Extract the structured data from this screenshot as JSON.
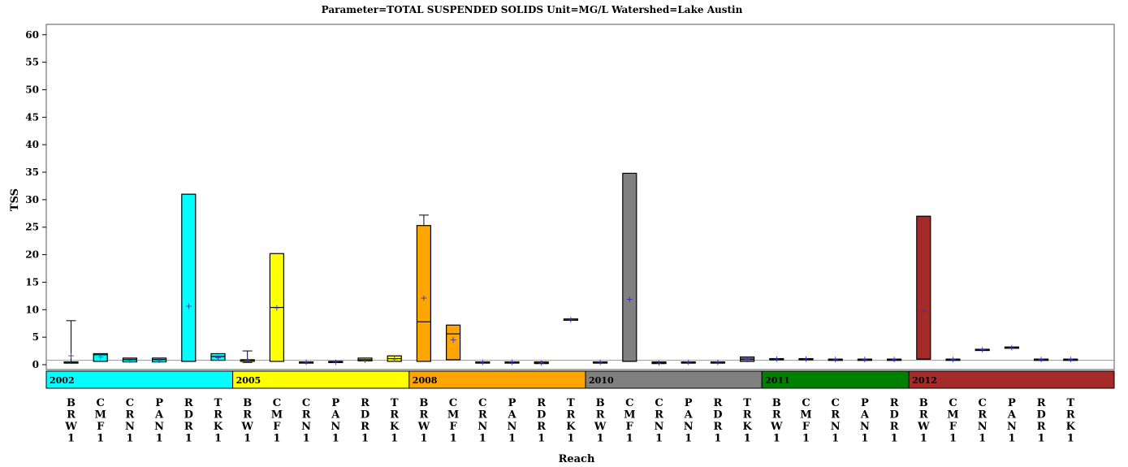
{
  "chart_data": {
    "type": "box",
    "title": "Parameter=TOTAL SUSPENDED SOLIDS Unit=MG/L Watershed=Lake Austin",
    "xlabel": "Reach",
    "ylabel": "TSS",
    "ylim": [
      0,
      61
    ],
    "yticks": [
      "0",
      "5",
      "10",
      "15",
      "20",
      "25",
      "30",
      "35",
      "40",
      "45",
      "50",
      "55",
      "60"
    ],
    "reference_line": 0.8,
    "groups": [
      {
        "label": "2002",
        "color": "#00ffff",
        "categories": [
          "BRW1",
          "CMF1",
          "CRN1",
          "PAN1",
          "RDR1",
          "TRK1"
        ]
      },
      {
        "label": "2005",
        "color": "#ffff00",
        "categories": [
          "BRW1",
          "CMF1",
          "CRN1",
          "PAN1",
          "RDR1",
          "TRK1"
        ]
      },
      {
        "label": "2008",
        "color": "#ffa500",
        "categories": [
          "BRW1",
          "CMF1",
          "CRN1",
          "PAN1",
          "RDR1",
          "TRK1"
        ]
      },
      {
        "label": "2010",
        "color": "#808080",
        "categories": [
          "BRW1",
          "CMF1",
          "CRN1",
          "PAN1",
          "RDR1",
          "TRK1"
        ]
      },
      {
        "label": "2011",
        "color": "#008000",
        "categories": [
          "BRW1",
          "CMF1",
          "CRN1",
          "PAN1",
          "RDR1"
        ]
      },
      {
        "label": "2012",
        "color": "#a52a2a",
        "categories": [
          "BRW1",
          "CMF1",
          "CRN1",
          "PAN1",
          "RDR1",
          "TRK1"
        ]
      }
    ],
    "boxes": [
      {
        "group": "2002",
        "reach": "BRW1",
        "q1": 0.5,
        "median": 0.5,
        "q3": 0.5,
        "min": 0.3,
        "max": 8.0,
        "mean": 1.7
      },
      {
        "group": "2002",
        "reach": "CMF1",
        "q1": 0.6,
        "median": 1.8,
        "q3": 2.0,
        "min": 0.6,
        "max": 2.0,
        "mean": 1.5
      },
      {
        "group": "2002",
        "reach": "CRN1",
        "q1": 0.5,
        "median": 0.9,
        "q3": 1.2,
        "min": 0.5,
        "max": 1.2,
        "mean": 0.9
      },
      {
        "group": "2002",
        "reach": "PAN1",
        "q1": 0.5,
        "median": 0.9,
        "q3": 1.2,
        "min": 0.5,
        "max": 1.2,
        "mean": 0.9
      },
      {
        "group": "2002",
        "reach": "RDR1",
        "q1": 0.6,
        "median": 0.6,
        "q3": 31.0,
        "min": 0.6,
        "max": 31.0,
        "mean": 10.7
      },
      {
        "group": "2002",
        "reach": "TRK1",
        "q1": 0.8,
        "median": 1.5,
        "q3": 2.0,
        "min": 0.8,
        "max": 2.0,
        "mean": 1.3
      },
      {
        "group": "2005",
        "reach": "BRW1",
        "q1": 0.6,
        "median": 0.8,
        "q3": 0.9,
        "min": 0.4,
        "max": 2.5,
        "mean": 0.9
      },
      {
        "group": "2005",
        "reach": "CMF1",
        "q1": 0.6,
        "median": 10.4,
        "q3": 20.2,
        "min": 0.6,
        "max": 20.2,
        "mean": 10.4
      },
      {
        "group": "2005",
        "reach": "CRN1",
        "q1": 0.5,
        "median": 0.5,
        "q3": 0.5,
        "min": 0.5,
        "max": 0.5,
        "mean": 0.5
      },
      {
        "group": "2005",
        "reach": "PAN1",
        "q1": 0.5,
        "median": 0.5,
        "q3": 0.6,
        "min": 0.5,
        "max": 0.6,
        "mean": 0.5
      },
      {
        "group": "2005",
        "reach": "RDR1",
        "q1": 0.7,
        "median": 0.9,
        "q3": 1.2,
        "min": 0.7,
        "max": 1.2,
        "mean": 0.9
      },
      {
        "group": "2005",
        "reach": "TRK1",
        "q1": 0.6,
        "median": 1.1,
        "q3": 1.6,
        "min": 0.6,
        "max": 1.6,
        "mean": 1.1
      },
      {
        "group": "2008",
        "reach": "BRW1",
        "q1": 0.6,
        "median": 7.8,
        "q3": 25.3,
        "min": 0.6,
        "max": 27.2,
        "mean": 12.2
      },
      {
        "group": "2008",
        "reach": "CMF1",
        "q1": 0.9,
        "median": 5.6,
        "q3": 7.2,
        "min": 0.9,
        "max": 7.2,
        "mean": 4.6
      },
      {
        "group": "2008",
        "reach": "CRN1",
        "q1": 0.5,
        "median": 0.5,
        "q3": 0.5,
        "min": 0.5,
        "max": 0.5,
        "mean": 0.5
      },
      {
        "group": "2008",
        "reach": "PAN1",
        "q1": 0.5,
        "median": 0.5,
        "q3": 0.5,
        "min": 0.5,
        "max": 0.5,
        "mean": 0.5
      },
      {
        "group": "2008",
        "reach": "RDR1",
        "q1": 0.2,
        "median": 0.3,
        "q3": 0.5,
        "min": 0.2,
        "max": 0.5,
        "mean": 0.35
      },
      {
        "group": "2008",
        "reach": "TRK1",
        "q1": 8.3,
        "median": 8.3,
        "q3": 8.3,
        "min": 8.3,
        "max": 8.3,
        "mean": 8.3
      },
      {
        "group": "2010",
        "reach": "BRW1",
        "q1": 0.5,
        "median": 0.5,
        "q3": 0.5,
        "min": 0.5,
        "max": 0.5,
        "mean": 0.5
      },
      {
        "group": "2010",
        "reach": "CMF1",
        "q1": 0.6,
        "median": 0.6,
        "q3": 34.8,
        "min": 0.6,
        "max": 34.8,
        "mean": 12.0
      },
      {
        "group": "2010",
        "reach": "CRN1",
        "q1": 0.2,
        "median": 0.4,
        "q3": 0.5,
        "min": 0.2,
        "max": 0.5,
        "mean": 0.4
      },
      {
        "group": "2010",
        "reach": "PAN1",
        "q1": 0.5,
        "median": 0.5,
        "q3": 0.5,
        "min": 0.5,
        "max": 0.5,
        "mean": 0.5
      },
      {
        "group": "2010",
        "reach": "RDR1",
        "q1": 0.5,
        "median": 0.5,
        "q3": 0.5,
        "min": 0.5,
        "max": 0.5,
        "mean": 0.5
      },
      {
        "group": "2010",
        "reach": "TRK1",
        "q1": 0.6,
        "median": 1.0,
        "q3": 1.4,
        "min": 0.6,
        "max": 1.4,
        "mean": 1.0
      },
      {
        "group": "2011",
        "reach": "BRW1",
        "q1": 1.1,
        "median": 1.1,
        "q3": 1.1,
        "min": 1.1,
        "max": 1.1,
        "mean": 1.1
      },
      {
        "group": "2011",
        "reach": "CMF1",
        "q1": 1.1,
        "median": 1.1,
        "q3": 1.1,
        "min": 1.1,
        "max": 1.1,
        "mean": 1.1
      },
      {
        "group": "2011",
        "reach": "CRN1",
        "q1": 1.0,
        "median": 1.0,
        "q3": 1.0,
        "min": 1.0,
        "max": 1.0,
        "mean": 1.0
      },
      {
        "group": "2011",
        "reach": "PAN1",
        "q1": 1.0,
        "median": 1.0,
        "q3": 1.0,
        "min": 1.0,
        "max": 1.0,
        "mean": 1.0
      },
      {
        "group": "2011",
        "reach": "RDR1",
        "q1": 1.0,
        "median": 1.0,
        "q3": 1.0,
        "min": 1.0,
        "max": 1.0,
        "mean": 1.0
      },
      {
        "group": "2012",
        "reach": "BRW1",
        "q1": 1.0,
        "median": 1.0,
        "q3": 27.0,
        "min": 1.0,
        "max": 27.0,
        "mean": 9.8
      },
      {
        "group": "2012",
        "reach": "CMF1",
        "q1": 1.0,
        "median": 1.0,
        "q3": 1.0,
        "min": 1.0,
        "max": 1.0,
        "mean": 1.0
      },
      {
        "group": "2012",
        "reach": "CRN1",
        "q1": 2.8,
        "median": 2.8,
        "q3": 2.8,
        "min": 2.8,
        "max": 2.8,
        "mean": 2.8
      },
      {
        "group": "2012",
        "reach": "PAN1",
        "q1": 3.2,
        "median": 3.2,
        "q3": 3.2,
        "min": 3.2,
        "max": 3.2,
        "mean": 3.2
      },
      {
        "group": "2012",
        "reach": "RDR1",
        "q1": 1.0,
        "median": 1.0,
        "q3": 1.0,
        "min": 1.0,
        "max": 1.0,
        "mean": 1.0
      },
      {
        "group": "2012",
        "reach": "TRK1",
        "q1": 1.0,
        "median": 1.0,
        "q3": 1.0,
        "min": 1.0,
        "max": 1.0,
        "mean": 1.0
      }
    ],
    "mean_marker_color": "#3333cc",
    "grid": false,
    "legend": "none"
  }
}
